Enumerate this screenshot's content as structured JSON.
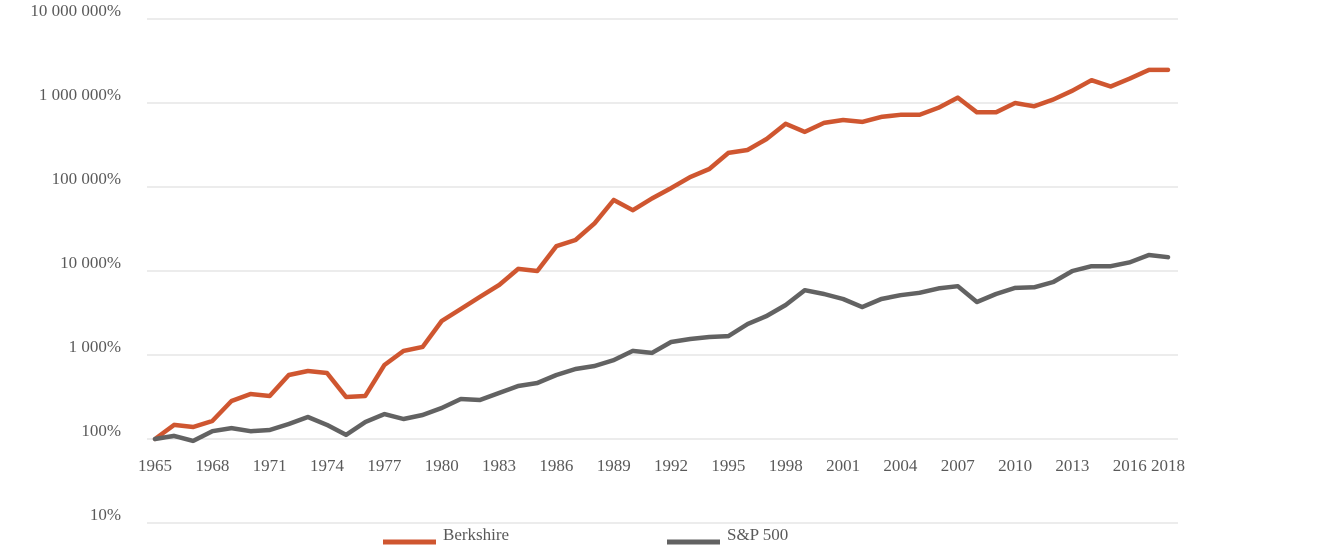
{
  "chart_data": {
    "type": "line",
    "log_y": true,
    "grid": true,
    "legend": "bottom",
    "x": [
      1965,
      1966,
      1967,
      1968,
      1969,
      1970,
      1971,
      1972,
      1973,
      1974,
      1975,
      1976,
      1977,
      1978,
      1979,
      1980,
      1981,
      1982,
      1983,
      1984,
      1985,
      1986,
      1987,
      1988,
      1989,
      1990,
      1991,
      1992,
      1993,
      1994,
      1995,
      1996,
      1997,
      1998,
      1999,
      2000,
      2001,
      2002,
      2003,
      2004,
      2005,
      2006,
      2007,
      2008,
      2009,
      2010,
      2011,
      2012,
      2013,
      2014,
      2015,
      2016,
      2017,
      2018
    ],
    "series": [
      {
        "name": "Berkshire",
        "color": "#cf5630",
        "values": [
          100,
          147,
          139,
          164,
          283,
          343,
          325,
          578,
          645,
          611,
          316,
          325,
          760,
          1120,
          1250,
          2540,
          3530,
          4910,
          6800,
          10600,
          10000,
          19800,
          23400,
          37000,
          70000,
          53000,
          73000,
          97000,
          131000,
          164000,
          255000,
          276000,
          373000,
          565000,
          453000,
          580000,
          628000,
          595000,
          684000,
          723000,
          723000,
          880000,
          1160000,
          776000,
          776000,
          1000000,
          913000,
          1100000,
          1400000,
          1870000,
          1570000,
          1950000,
          2480000,
          2480000
        ]
      },
      {
        "name": "S&P 500",
        "color": "#626262",
        "values": [
          100,
          109,
          95,
          124,
          135,
          124,
          128,
          151,
          183,
          147,
          112,
          159,
          198,
          173,
          193,
          234,
          299,
          291,
          353,
          428,
          464,
          578,
          681,
          740,
          870,
          1120,
          1060,
          1430,
          1550,
          1640,
          1680,
          2330,
          2910,
          3940,
          5900,
          5330,
          4640,
          3720,
          4640,
          5150,
          5500,
          6200,
          6600,
          4270,
          5330,
          6300,
          6400,
          7400,
          10000,
          11400,
          11400,
          12700,
          15500,
          14600
        ]
      }
    ],
    "xlim": [
      1965,
      2018
    ],
    "xticks": [
      1965,
      1968,
      1971,
      1974,
      1977,
      1980,
      1983,
      1986,
      1989,
      1992,
      1995,
      1998,
      2001,
      2004,
      2007,
      2010,
      2013,
      2016,
      2018
    ],
    "ylim": [
      10,
      10000000
    ],
    "yticks": [
      {
        "value": 10,
        "label": "10%"
      },
      {
        "value": 100,
        "label": "100%"
      },
      {
        "value": 1000,
        "label": "1 000%"
      },
      {
        "value": 10000,
        "label": "10 000%"
      },
      {
        "value": 100000,
        "label": "100 000%"
      },
      {
        "value": 1000000,
        "label": "1 000 000%"
      },
      {
        "value": 10000000,
        "label": "10 000 000%"
      }
    ]
  }
}
